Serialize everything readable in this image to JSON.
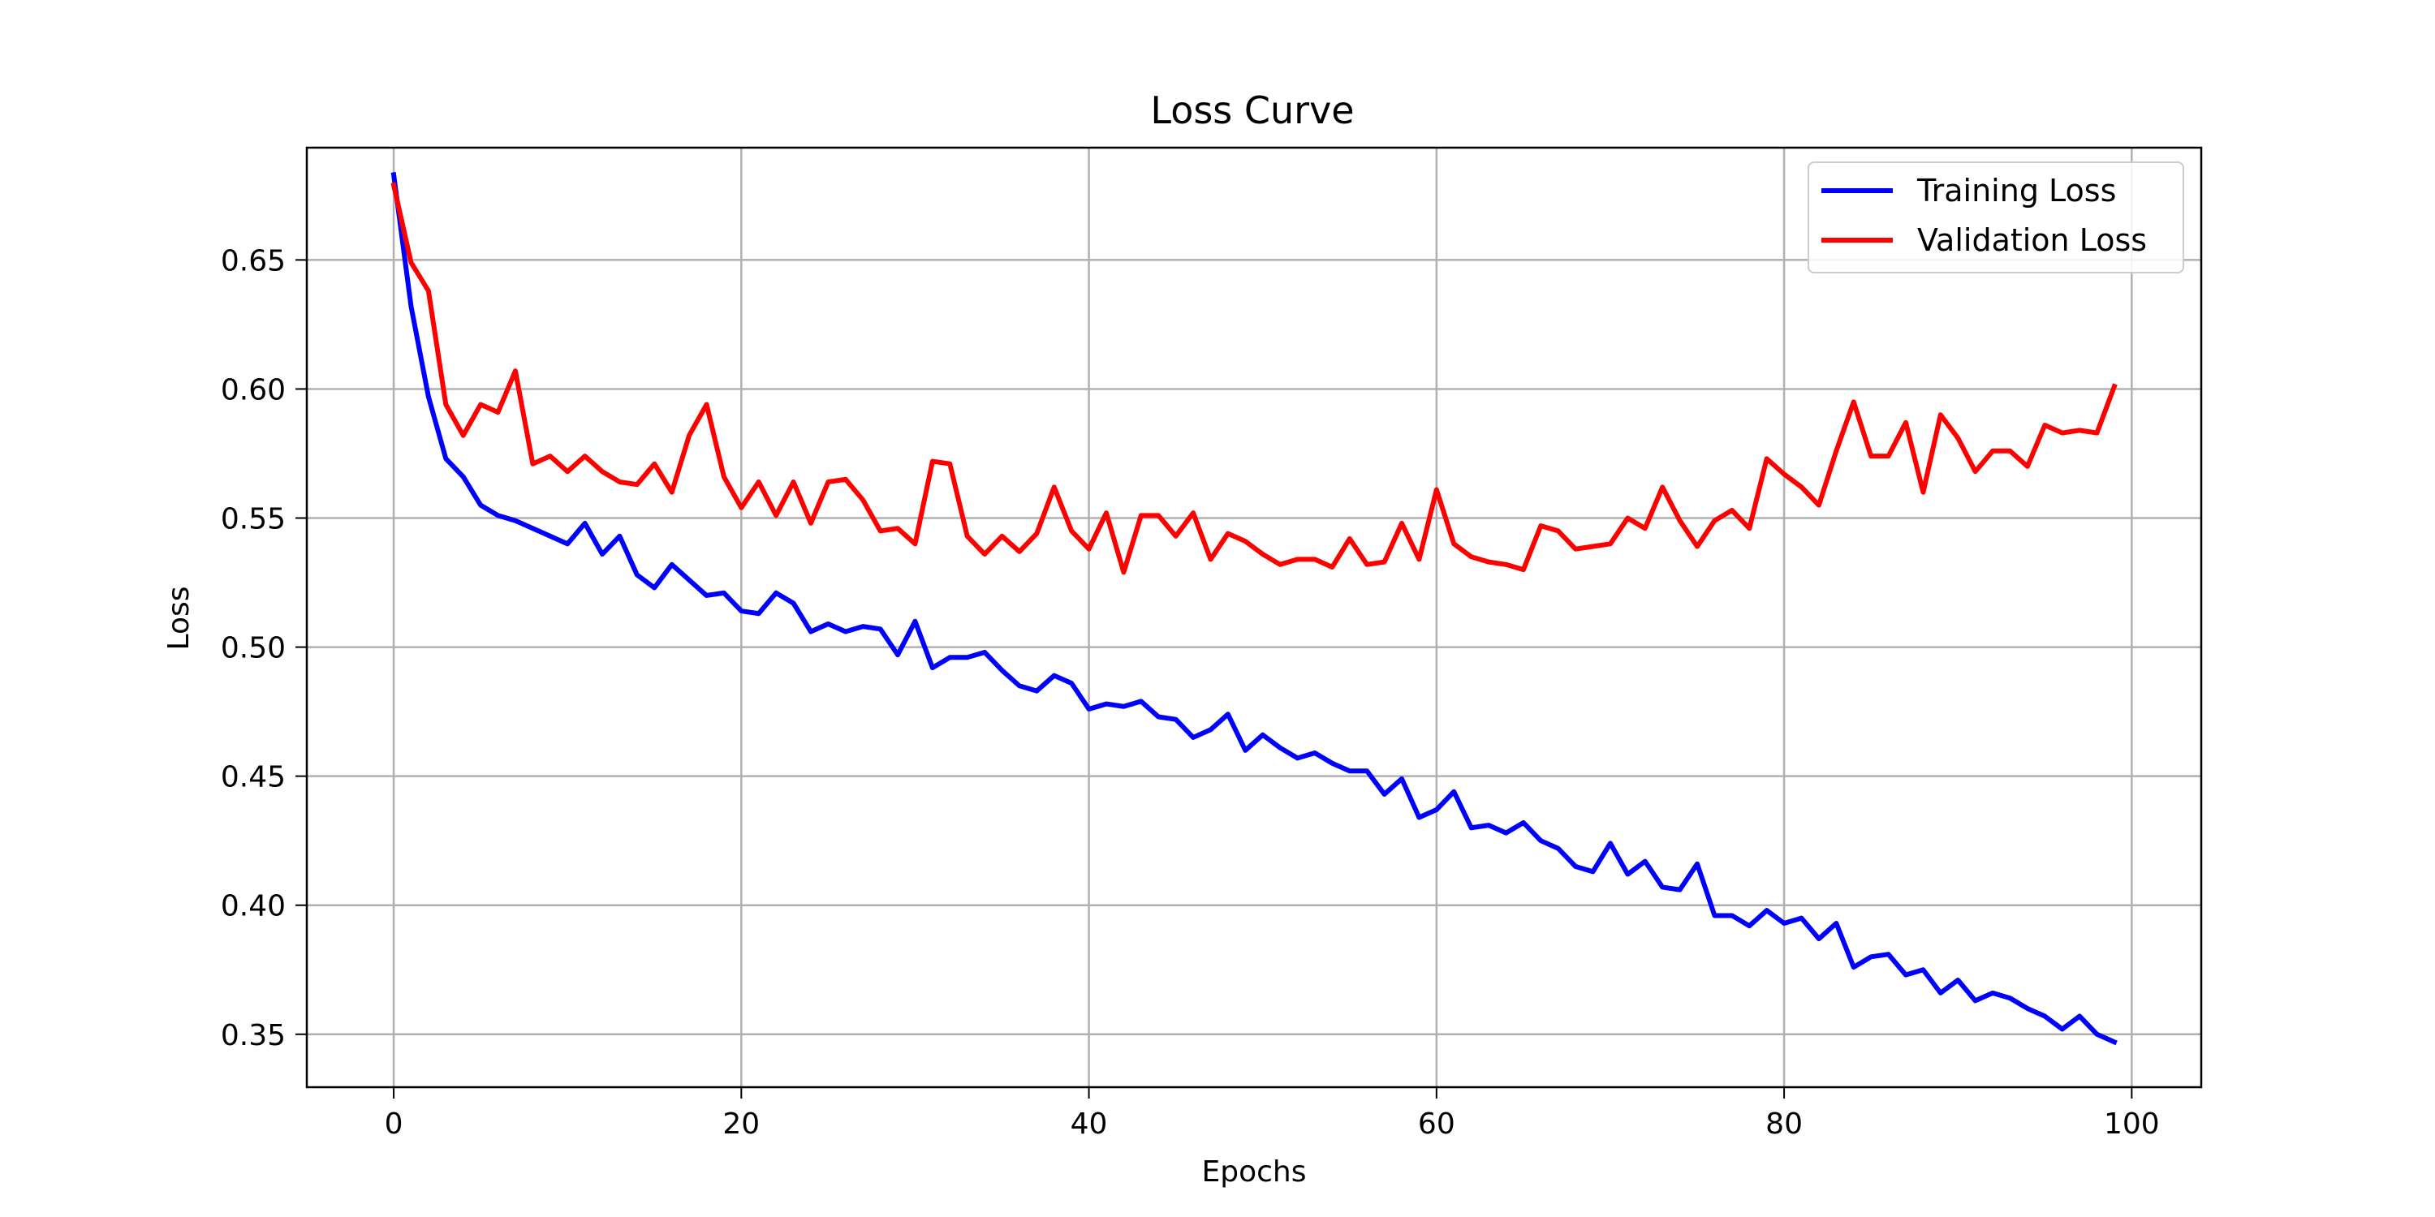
{
  "chart_data": {
    "type": "line",
    "title": "Loss Curve",
    "xlabel": "Epochs",
    "ylabel": "Loss",
    "xlim": [
      -5,
      104
    ],
    "ylim": [
      0.3295,
      0.6935
    ],
    "xticks": [
      0,
      20,
      40,
      60,
      80,
      100
    ],
    "yticks": [
      0.35,
      0.4,
      0.45,
      0.5,
      0.55,
      0.6,
      0.65
    ],
    "grid": true,
    "legend_position": "top-right",
    "series": [
      {
        "name": "Training Loss",
        "color": "#0000ff",
        "values": [
          0.683,
          0.632,
          0.597,
          0.573,
          0.566,
          0.555,
          0.551,
          0.549,
          0.546,
          0.543,
          0.54,
          0.548,
          0.536,
          0.543,
          0.528,
          0.523,
          0.532,
          0.526,
          0.52,
          0.521,
          0.514,
          0.513,
          0.521,
          0.517,
          0.506,
          0.509,
          0.506,
          0.508,
          0.507,
          0.497,
          0.51,
          0.492,
          0.496,
          0.496,
          0.498,
          0.491,
          0.485,
          0.483,
          0.489,
          0.486,
          0.476,
          0.478,
          0.477,
          0.479,
          0.473,
          0.472,
          0.465,
          0.468,
          0.474,
          0.46,
          0.466,
          0.461,
          0.457,
          0.459,
          0.455,
          0.452,
          0.452,
          0.443,
          0.449,
          0.434,
          0.437,
          0.444,
          0.43,
          0.431,
          0.428,
          0.432,
          0.425,
          0.422,
          0.415,
          0.413,
          0.424,
          0.412,
          0.417,
          0.407,
          0.406,
          0.416,
          0.396,
          0.396,
          0.392,
          0.398,
          0.393,
          0.395,
          0.387,
          0.393,
          0.376,
          0.38,
          0.381,
          0.373,
          0.375,
          0.366,
          0.371,
          0.363,
          0.366,
          0.364,
          0.36,
          0.357,
          0.352,
          0.357,
          0.35,
          0.347
        ]
      },
      {
        "name": "Validation Loss",
        "color": "#ff0000",
        "values": [
          0.679,
          0.649,
          0.638,
          0.594,
          0.582,
          0.594,
          0.591,
          0.607,
          0.571,
          0.574,
          0.568,
          0.574,
          0.568,
          0.564,
          0.563,
          0.571,
          0.56,
          0.582,
          0.594,
          0.566,
          0.554,
          0.564,
          0.551,
          0.564,
          0.548,
          0.564,
          0.565,
          0.557,
          0.545,
          0.546,
          0.54,
          0.572,
          0.571,
          0.543,
          0.536,
          0.543,
          0.537,
          0.544,
          0.562,
          0.545,
          0.538,
          0.552,
          0.529,
          0.551,
          0.551,
          0.543,
          0.552,
          0.534,
          0.544,
          0.541,
          0.536,
          0.532,
          0.534,
          0.534,
          0.531,
          0.542,
          0.532,
          0.533,
          0.548,
          0.534,
          0.561,
          0.54,
          0.535,
          0.533,
          0.532,
          0.53,
          0.547,
          0.545,
          0.538,
          0.539,
          0.54,
          0.55,
          0.546,
          0.562,
          0.549,
          0.539,
          0.549,
          0.553,
          0.546,
          0.573,
          0.567,
          0.562,
          0.555,
          0.576,
          0.595,
          0.574,
          0.574,
          0.587,
          0.56,
          0.59,
          0.581,
          0.568,
          0.576,
          0.576,
          0.57,
          0.586,
          0.583,
          0.584,
          0.583,
          0.601
        ]
      }
    ]
  }
}
